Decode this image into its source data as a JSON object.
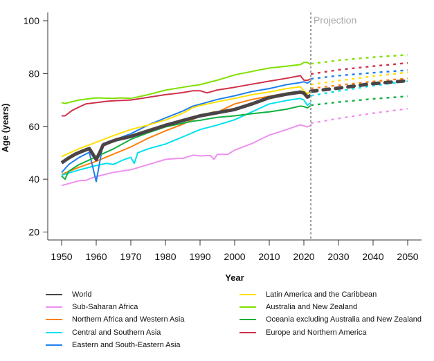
{
  "chart_data": {
    "type": "line",
    "title": "",
    "xlabel": "Year",
    "ylabel": "Age (years)",
    "xlim": [
      1946,
      2054
    ],
    "ylim": [
      16,
      104
    ],
    "x_ticks": [
      1950,
      1960,
      1970,
      1980,
      1990,
      2000,
      2010,
      2020,
      2030,
      2040,
      2050
    ],
    "y_ticks": [
      20,
      40,
      60,
      80,
      100
    ],
    "grid": false,
    "projection_start": 2022,
    "annotation": "Projection",
    "legend_placement": "bottom",
    "series": [
      {
        "name": "World",
        "color": "#4a4446",
        "emphasis": true,
        "points": [
          [
            1950,
            46.2
          ],
          [
            1952,
            48
          ],
          [
            1954,
            49.5
          ],
          [
            1956,
            50.6
          ],
          [
            1958,
            51.6
          ],
          [
            1959,
            49.5
          ],
          [
            1960,
            47.5
          ],
          [
            1961,
            50
          ],
          [
            1962,
            53
          ],
          [
            1964,
            54.1
          ],
          [
            1966,
            55
          ],
          [
            1968,
            55.6
          ],
          [
            1970,
            56.2
          ],
          [
            1975,
            58.3
          ],
          [
            1980,
            60.4
          ],
          [
            1985,
            62.2
          ],
          [
            1990,
            64
          ],
          [
            1995,
            65.2
          ],
          [
            2000,
            66.4
          ],
          [
            2005,
            68.5
          ],
          [
            2010,
            70.9
          ],
          [
            2015,
            72.2
          ],
          [
            2019,
            73
          ],
          [
            2020,
            72.6
          ],
          [
            2021,
            71.1
          ],
          [
            2022,
            71.7
          ]
        ],
        "projection": [
          [
            2022,
            73.3
          ],
          [
            2030,
            74.5
          ],
          [
            2040,
            76.2
          ],
          [
            2050,
            77.3
          ]
        ]
      },
      {
        "name": "Sub-Saharan Africa",
        "color": "#ee90ee",
        "points": [
          [
            1950,
            37.6
          ],
          [
            1955,
            39.4
          ],
          [
            1957,
            39.6
          ],
          [
            1959,
            40.6
          ],
          [
            1960,
            41
          ],
          [
            1965,
            42.6
          ],
          [
            1970,
            43.6
          ],
          [
            1975,
            45.5
          ],
          [
            1980,
            47.5
          ],
          [
            1983,
            47.8
          ],
          [
            1985,
            47.9
          ],
          [
            1988,
            49.1
          ],
          [
            1990,
            48.8
          ],
          [
            1993,
            49
          ],
          [
            1994,
            47.5
          ],
          [
            1995,
            49.4
          ],
          [
            1998,
            49.4
          ],
          [
            2000,
            51
          ],
          [
            2005,
            53.5
          ],
          [
            2010,
            56.7
          ],
          [
            2015,
            58.8
          ],
          [
            2019,
            60.6
          ],
          [
            2021,
            59.8
          ],
          [
            2022,
            60.4
          ]
        ],
        "projection": [
          [
            2022,
            61.2
          ],
          [
            2030,
            63
          ],
          [
            2040,
            65
          ],
          [
            2050,
            66.7
          ]
        ]
      },
      {
        "name": "Northern Africa and Western Asia",
        "color": "#ff7f0e",
        "points": [
          [
            1950,
            41.8
          ],
          [
            1955,
            44.5
          ],
          [
            1960,
            46.8
          ],
          [
            1965,
            49.5
          ],
          [
            1970,
            52.2
          ],
          [
            1975,
            55.5
          ],
          [
            1980,
            58.3
          ],
          [
            1985,
            60.8
          ],
          [
            1988,
            62.7
          ],
          [
            1990,
            63.8
          ],
          [
            1994,
            65.5
          ],
          [
            1995,
            64.8
          ],
          [
            1996,
            66
          ],
          [
            2000,
            68.5
          ],
          [
            2005,
            70.2
          ],
          [
            2010,
            71.4
          ],
          [
            2015,
            72.6
          ],
          [
            2019,
            73.2
          ],
          [
            2020,
            72.8
          ],
          [
            2021,
            72.4
          ],
          [
            2022,
            73.5
          ]
        ],
        "projection": [
          [
            2022,
            74.3
          ],
          [
            2030,
            75.6
          ],
          [
            2040,
            77
          ],
          [
            2050,
            78.2
          ]
        ]
      },
      {
        "name": "Central and Southern Asia",
        "color": "#00e0f0",
        "points": [
          [
            1950,
            41.5
          ],
          [
            1952,
            42.3
          ],
          [
            1955,
            43.5
          ],
          [
            1960,
            45.2
          ],
          [
            1963,
            46
          ],
          [
            1965,
            45.6
          ],
          [
            1968,
            47.4
          ],
          [
            1970,
            48.3
          ],
          [
            1971,
            46
          ],
          [
            1972,
            50
          ],
          [
            1975,
            51.5
          ],
          [
            1980,
            53.3
          ],
          [
            1985,
            56
          ],
          [
            1990,
            58.8
          ],
          [
            1995,
            60.5
          ],
          [
            2000,
            62.5
          ],
          [
            2005,
            65.5
          ],
          [
            2010,
            68.5
          ],
          [
            2015,
            69.8
          ],
          [
            2019,
            70.6
          ],
          [
            2020,
            70
          ],
          [
            2021,
            68
          ],
          [
            2022,
            69
          ]
        ],
        "projection": [
          [
            2022,
            71.6
          ],
          [
            2030,
            73.4
          ],
          [
            2040,
            75.4
          ],
          [
            2050,
            77.1
          ]
        ]
      },
      {
        "name": "Eastern and South-Eastern Asia",
        "color": "#1e7ff0",
        "points": [
          [
            1950,
            42.5
          ],
          [
            1952,
            45.5
          ],
          [
            1955,
            48.2
          ],
          [
            1958,
            50.2
          ],
          [
            1960,
            39.1
          ],
          [
            1962,
            53.5
          ],
          [
            1965,
            54.8
          ],
          [
            1970,
            57.2
          ],
          [
            1975,
            60.5
          ],
          [
            1980,
            63.2
          ],
          [
            1985,
            65.8
          ],
          [
            1988,
            67.7
          ],
          [
            1990,
            68.4
          ],
          [
            1995,
            70.2
          ],
          [
            2000,
            71.6
          ],
          [
            2005,
            73.2
          ],
          [
            2010,
            74.3
          ],
          [
            2015,
            75.8
          ],
          [
            2019,
            76.6
          ],
          [
            2020,
            76.9
          ],
          [
            2021,
            76.4
          ],
          [
            2022,
            77.2
          ]
        ],
        "projection": [
          [
            2022,
            78
          ],
          [
            2030,
            79.2
          ],
          [
            2040,
            80.3
          ],
          [
            2050,
            81.3
          ]
        ]
      },
      {
        "name": "Latin America and the Caribbean",
        "color": "#ffe000",
        "points": [
          [
            1950,
            48.6
          ],
          [
            1955,
            51.5
          ],
          [
            1960,
            54
          ],
          [
            1965,
            56.5
          ],
          [
            1970,
            58.8
          ],
          [
            1975,
            60.5
          ],
          [
            1980,
            62.4
          ],
          [
            1985,
            65
          ],
          [
            1988,
            67.2
          ],
          [
            1990,
            67.9
          ],
          [
            1995,
            69.3
          ],
          [
            2000,
            70.6
          ],
          [
            2005,
            72
          ],
          [
            2010,
            73
          ],
          [
            2015,
            74.3
          ],
          [
            2019,
            75
          ],
          [
            2020,
            73.5
          ],
          [
            2021,
            72.2
          ],
          [
            2022,
            73.8
          ]
        ],
        "projection": [
          [
            2022,
            75.8
          ],
          [
            2030,
            77.3
          ],
          [
            2040,
            79
          ],
          [
            2050,
            80.5
          ]
        ]
      },
      {
        "name": "Australia and New Zealand",
        "color": "#7fe000",
        "points": [
          [
            1950,
            69
          ],
          [
            1951,
            68.7
          ],
          [
            1955,
            70
          ],
          [
            1958,
            70.5
          ],
          [
            1960,
            70.8
          ],
          [
            1965,
            70.6
          ],
          [
            1967,
            70.8
          ],
          [
            1970,
            70.6
          ],
          [
            1975,
            72
          ],
          [
            1980,
            73.7
          ],
          [
            1985,
            74.8
          ],
          [
            1990,
            75.8
          ],
          [
            1995,
            77.5
          ],
          [
            2000,
            79.5
          ],
          [
            2005,
            80.8
          ],
          [
            2010,
            82.1
          ],
          [
            2015,
            82.8
          ],
          [
            2019,
            83.4
          ],
          [
            2020,
            84.2
          ],
          [
            2021,
            84.2
          ],
          [
            2022,
            83.4
          ]
        ],
        "projection": [
          [
            2022,
            83.7
          ],
          [
            2030,
            85
          ],
          [
            2040,
            86.2
          ],
          [
            2050,
            87.1
          ]
        ]
      },
      {
        "name": "Oceania excluding Australia and New Zealand",
        "color": "#10b040",
        "points": [
          [
            1950,
            41.2
          ],
          [
            1951,
            40
          ],
          [
            1952,
            43
          ],
          [
            1955,
            45.5
          ],
          [
            1960,
            48.5
          ],
          [
            1965,
            51.5
          ],
          [
            1970,
            55.1
          ],
          [
            1975,
            57.6
          ],
          [
            1980,
            59.8
          ],
          [
            1985,
            61.2
          ],
          [
            1988,
            62
          ],
          [
            1990,
            62.3
          ],
          [
            1993,
            63
          ],
          [
            1995,
            63.4
          ],
          [
            2000,
            64
          ],
          [
            2005,
            64.8
          ],
          [
            2010,
            65.5
          ],
          [
            2015,
            66.5
          ],
          [
            2019,
            67.7
          ],
          [
            2020,
            67.5
          ],
          [
            2021,
            67
          ],
          [
            2022,
            67.9
          ]
        ],
        "projection": [
          [
            2022,
            68
          ],
          [
            2030,
            69.2
          ],
          [
            2040,
            70.4
          ],
          [
            2050,
            71.4
          ]
        ]
      },
      {
        "name": "Europe and Northern America",
        "color": "#d0304a",
        "points": [
          [
            1950,
            64
          ],
          [
            1951,
            64
          ],
          [
            1953,
            66
          ],
          [
            1955,
            67.3
          ],
          [
            1957,
            68.5
          ],
          [
            1960,
            69
          ],
          [
            1963,
            69.5
          ],
          [
            1965,
            69.7
          ],
          [
            1970,
            70
          ],
          [
            1975,
            71
          ],
          [
            1980,
            72
          ],
          [
            1985,
            72.8
          ],
          [
            1988,
            73.5
          ],
          [
            1990,
            73.5
          ],
          [
            1992,
            72.7
          ],
          [
            1995,
            73.8
          ],
          [
            2000,
            74.8
          ],
          [
            2005,
            76
          ],
          [
            2010,
            77.1
          ],
          [
            2015,
            78.2
          ],
          [
            2019,
            79.2
          ],
          [
            2020,
            77.5
          ],
          [
            2021,
            77.4
          ],
          [
            2022,
            78
          ]
        ],
        "projection": [
          [
            2022,
            79.8
          ],
          [
            2030,
            81.4
          ],
          [
            2040,
            82.8
          ],
          [
            2050,
            84
          ]
        ]
      }
    ]
  }
}
